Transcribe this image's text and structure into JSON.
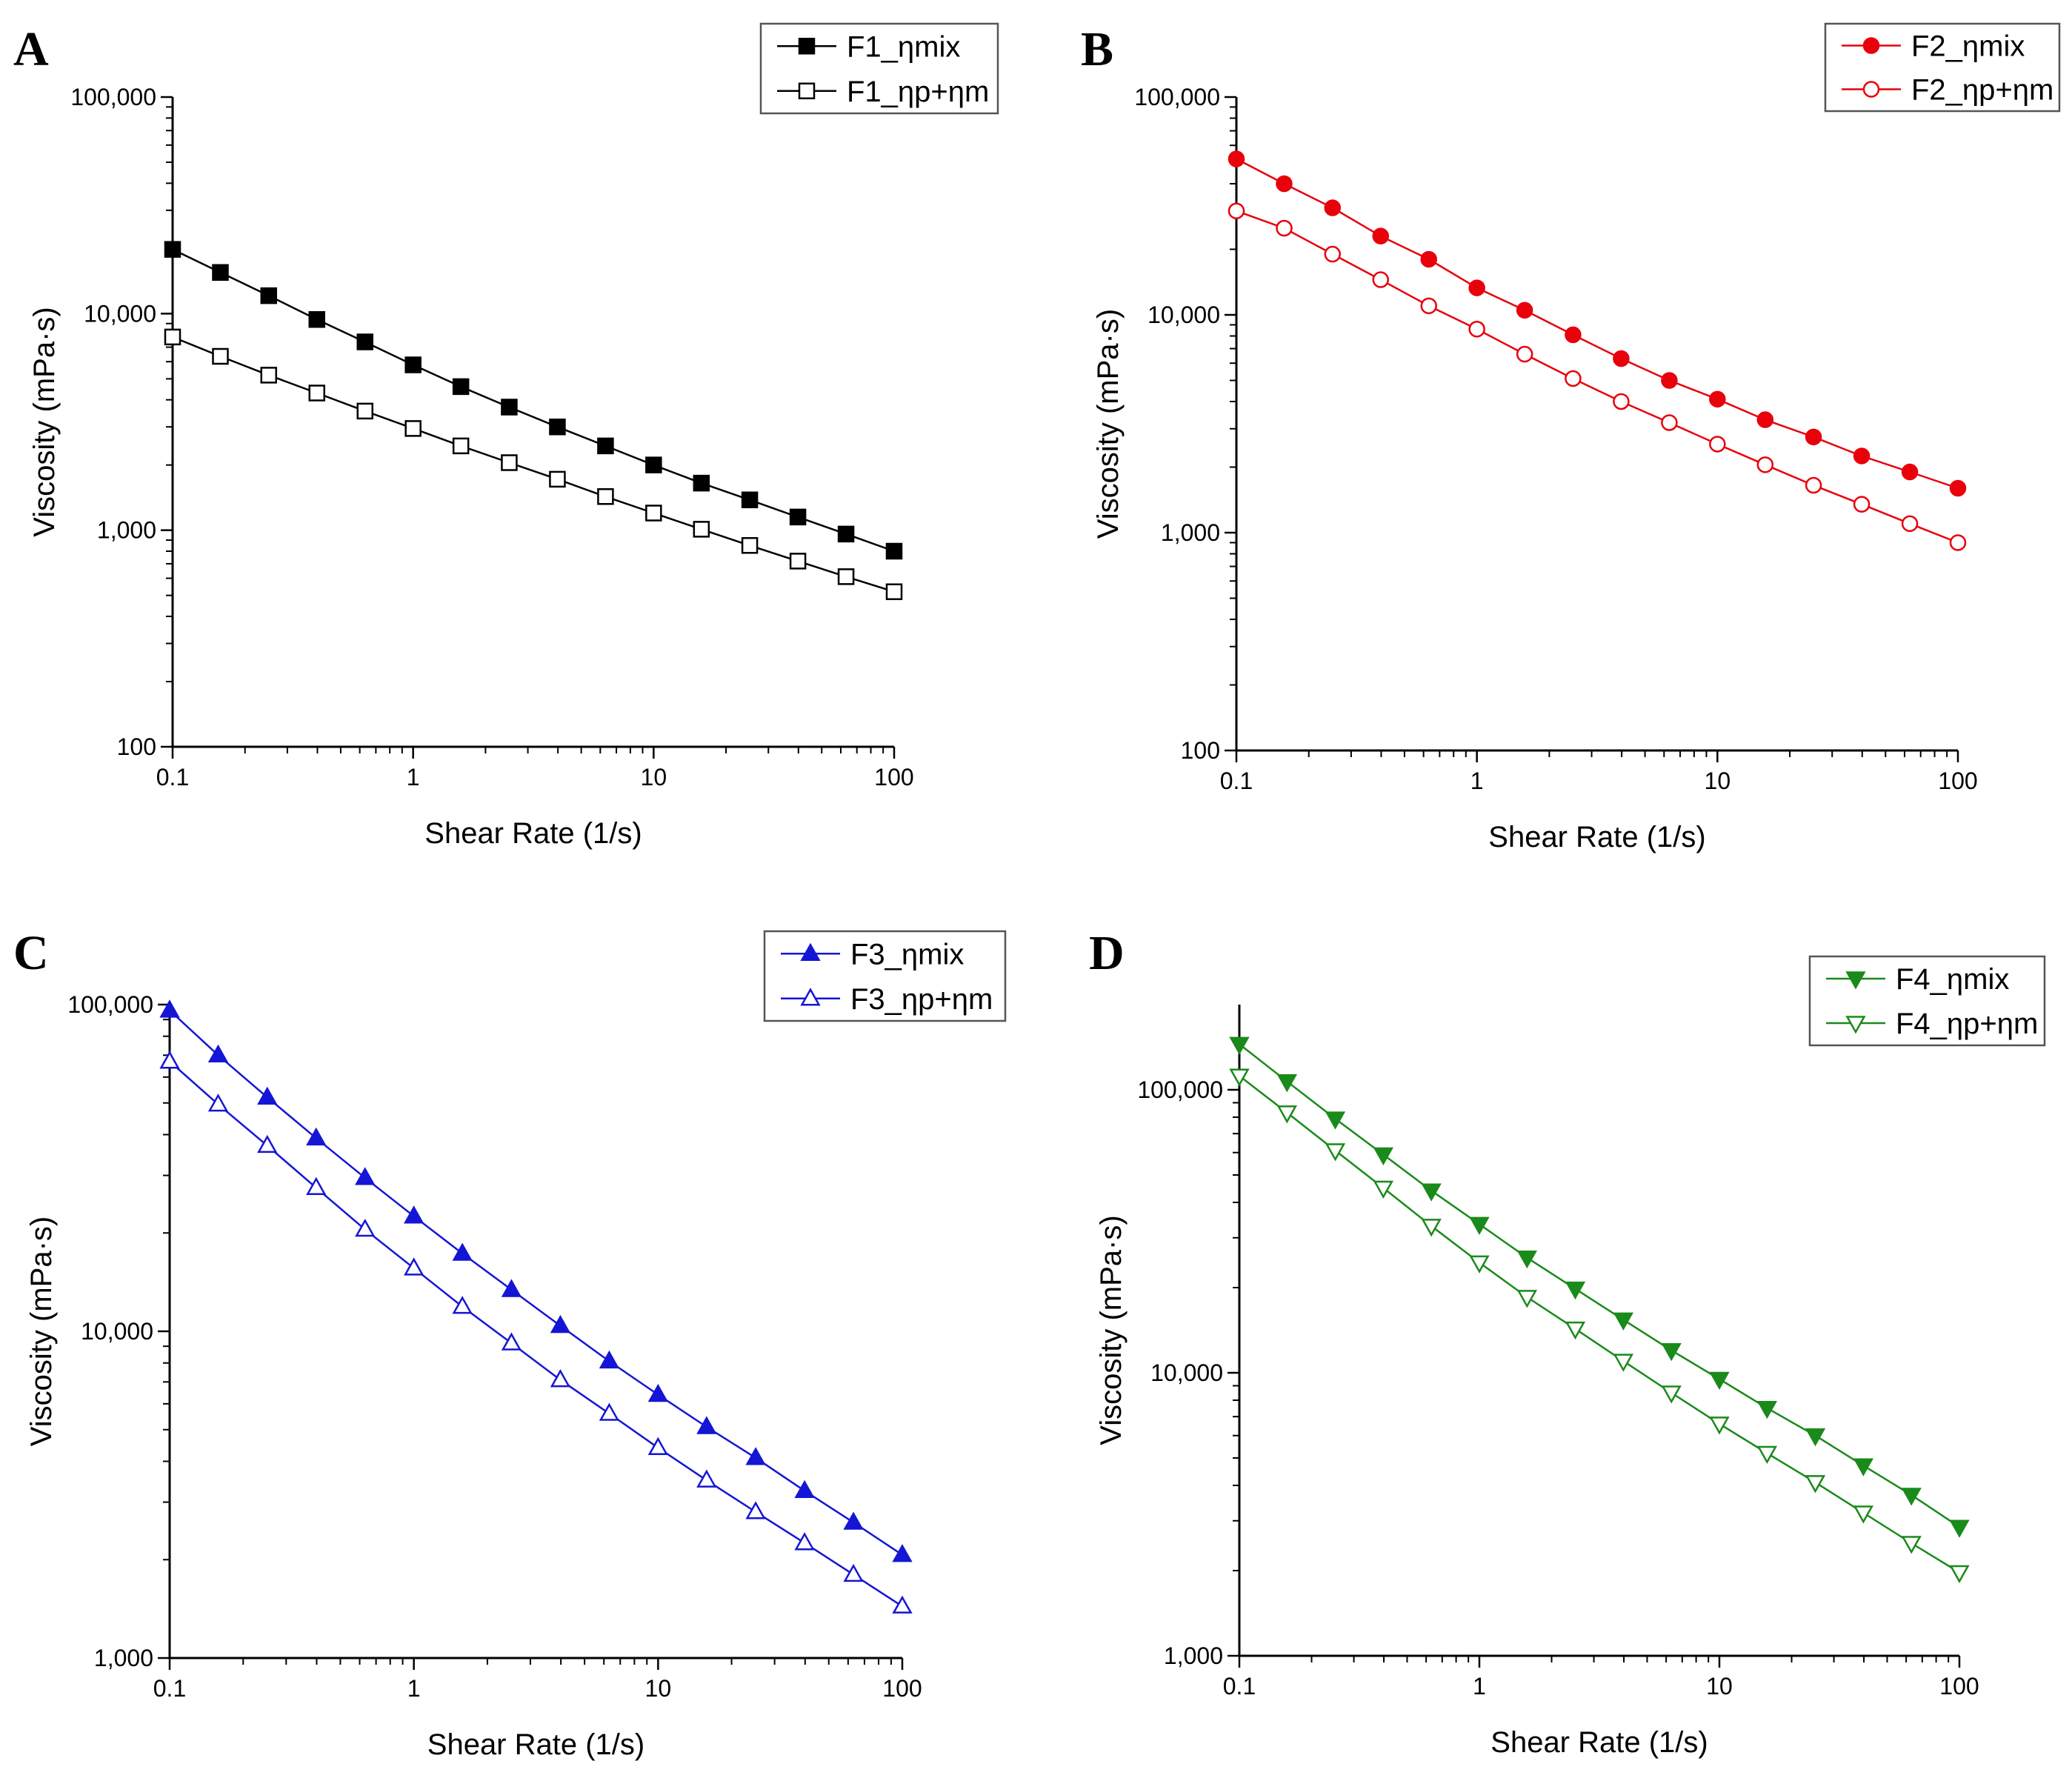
{
  "figure": {
    "panels": [
      "A",
      "B",
      "C",
      "D"
    ]
  },
  "chart_data": [
    {
      "panel": "A",
      "type": "line",
      "scale": "log-log",
      "xlabel": "Shear Rate (1/s)",
      "ylabel": "Viscosity (mPa·s)",
      "xlim": [
        0.1,
        100
      ],
      "ylim": [
        100,
        100000
      ],
      "xticks": [
        0.1,
        1,
        10,
        100
      ],
      "xtick_labels": [
        "0.1",
        "1",
        "10",
        "100"
      ],
      "yticks": [
        100,
        1000,
        10000,
        100000
      ],
      "ytick_labels": [
        "100",
        "1,000",
        "10,000",
        "100,000"
      ],
      "color": "#000000",
      "legend_position": "top-right",
      "x": [
        0.1,
        0.158,
        0.251,
        0.398,
        0.631,
        1,
        1.58,
        2.51,
        3.98,
        6.31,
        10,
        15.8,
        25.1,
        39.8,
        63.1,
        100
      ],
      "series": [
        {
          "name": "F1_ηmix",
          "marker": "square",
          "filled": true,
          "values": [
            19800,
            15500,
            12100,
            9400,
            7400,
            5800,
            4600,
            3700,
            3000,
            2450,
            2000,
            1650,
            1380,
            1150,
            960,
            800
          ]
        },
        {
          "name": "F1_ηp+ηm",
          "marker": "square",
          "filled": false,
          "values": [
            7800,
            6350,
            5200,
            4300,
            3550,
            2950,
            2450,
            2050,
            1720,
            1430,
            1200,
            1010,
            850,
            720,
            610,
            520
          ]
        }
      ]
    },
    {
      "panel": "B",
      "type": "line",
      "scale": "log-log",
      "xlabel": "Shear Rate (1/s)",
      "ylabel": "Viscosity (mPa·s)",
      "xlim": [
        0.1,
        100
      ],
      "ylim": [
        100,
        100000
      ],
      "xticks": [
        0.1,
        1,
        10,
        100
      ],
      "xtick_labels": [
        "0.1",
        "1",
        "10",
        "100"
      ],
      "yticks": [
        100,
        1000,
        10000,
        100000
      ],
      "ytick_labels": [
        "100",
        "1,000",
        "10,000",
        "100,000"
      ],
      "color": "#e8000b",
      "legend_position": "top-right",
      "x": [
        0.1,
        0.158,
        0.251,
        0.398,
        0.631,
        1,
        1.58,
        2.51,
        3.98,
        6.31,
        10,
        15.8,
        25.1,
        39.8,
        63.1,
        100
      ],
      "series": [
        {
          "name": "F2_ηmix",
          "marker": "circle",
          "filled": true,
          "values": [
            52000,
            40000,
            31000,
            23000,
            18000,
            13300,
            10500,
            8100,
            6300,
            5000,
            4100,
            3300,
            2750,
            2250,
            1900,
            1600
          ]
        },
        {
          "name": "F2_ηp+ηm",
          "marker": "circle",
          "filled": false,
          "values": [
            30000,
            25000,
            19000,
            14500,
            11000,
            8600,
            6600,
            5100,
            4000,
            3200,
            2550,
            2050,
            1650,
            1350,
            1100,
            900
          ]
        }
      ]
    },
    {
      "panel": "C",
      "type": "line",
      "scale": "log-log",
      "xlabel": "Shear Rate (1/s)",
      "ylabel": "Viscosity (mPa·s)",
      "xlim": [
        0.1,
        100
      ],
      "ylim": [
        1000,
        100000
      ],
      "xticks": [
        0.1,
        1,
        10,
        100
      ],
      "xtick_labels": [
        "0.1",
        "1",
        "10",
        "100"
      ],
      "yticks": [
        1000,
        10000,
        100000
      ],
      "ytick_labels": [
        "1,000",
        "10,000",
        "100,000"
      ],
      "color": "#1515d6",
      "legend_position": "top-right",
      "x": [
        0.1,
        0.158,
        0.251,
        0.398,
        0.631,
        1,
        1.58,
        2.51,
        3.98,
        6.31,
        10,
        15.8,
        25.1,
        39.8,
        63.1,
        100
      ],
      "series": [
        {
          "name": "F3_ηmix",
          "marker": "triangle-up",
          "filled": true,
          "values": [
            96000,
            70000,
            52000,
            39000,
            29500,
            22500,
            17300,
            13400,
            10400,
            8100,
            6400,
            5100,
            4100,
            3250,
            2600,
            2070
          ]
        },
        {
          "name": "F3_ηp+ηm",
          "marker": "triangle-up",
          "filled": false,
          "values": [
            67000,
            49500,
            37000,
            27500,
            20500,
            15600,
            11900,
            9200,
            7100,
            5600,
            4400,
            3500,
            2800,
            2250,
            1800,
            1440
          ]
        }
      ]
    },
    {
      "panel": "D",
      "type": "line",
      "scale": "log-log",
      "xlabel": "Shear Rate (1/s)",
      "ylabel": "Viscosity (mPa·s)",
      "xlim": [
        0.1,
        100
      ],
      "ylim": [
        1000,
        200000
      ],
      "xticks": [
        0.1,
        1,
        10,
        100
      ],
      "xtick_labels": [
        "0.1",
        "1",
        "10",
        "100"
      ],
      "yticks": [
        1000,
        10000,
        100000
      ],
      "ytick_labels": [
        "1,000",
        "10,000",
        "100,000"
      ],
      "color": "#1a8a1a",
      "legend_position": "top-right",
      "x": [
        0.1,
        0.158,
        0.251,
        0.398,
        0.631,
        1,
        1.58,
        2.51,
        3.98,
        6.31,
        10,
        15.8,
        25.1,
        39.8,
        63.1,
        100
      ],
      "series": [
        {
          "name": "F4_ηmix",
          "marker": "triangle-down",
          "filled": true,
          "values": [
            145000,
            107000,
            79000,
            59000,
            44000,
            33500,
            25500,
            19800,
            15400,
            12000,
            9500,
            7500,
            6000,
            4700,
            3700,
            2850
          ]
        },
        {
          "name": "F4_ηp+ηm",
          "marker": "triangle-down",
          "filled": false,
          "values": [
            112000,
            83000,
            61000,
            45000,
            33000,
            24500,
            18500,
            14300,
            11000,
            8500,
            6600,
            5200,
            4100,
            3200,
            2500,
            1970
          ]
        }
      ]
    }
  ]
}
